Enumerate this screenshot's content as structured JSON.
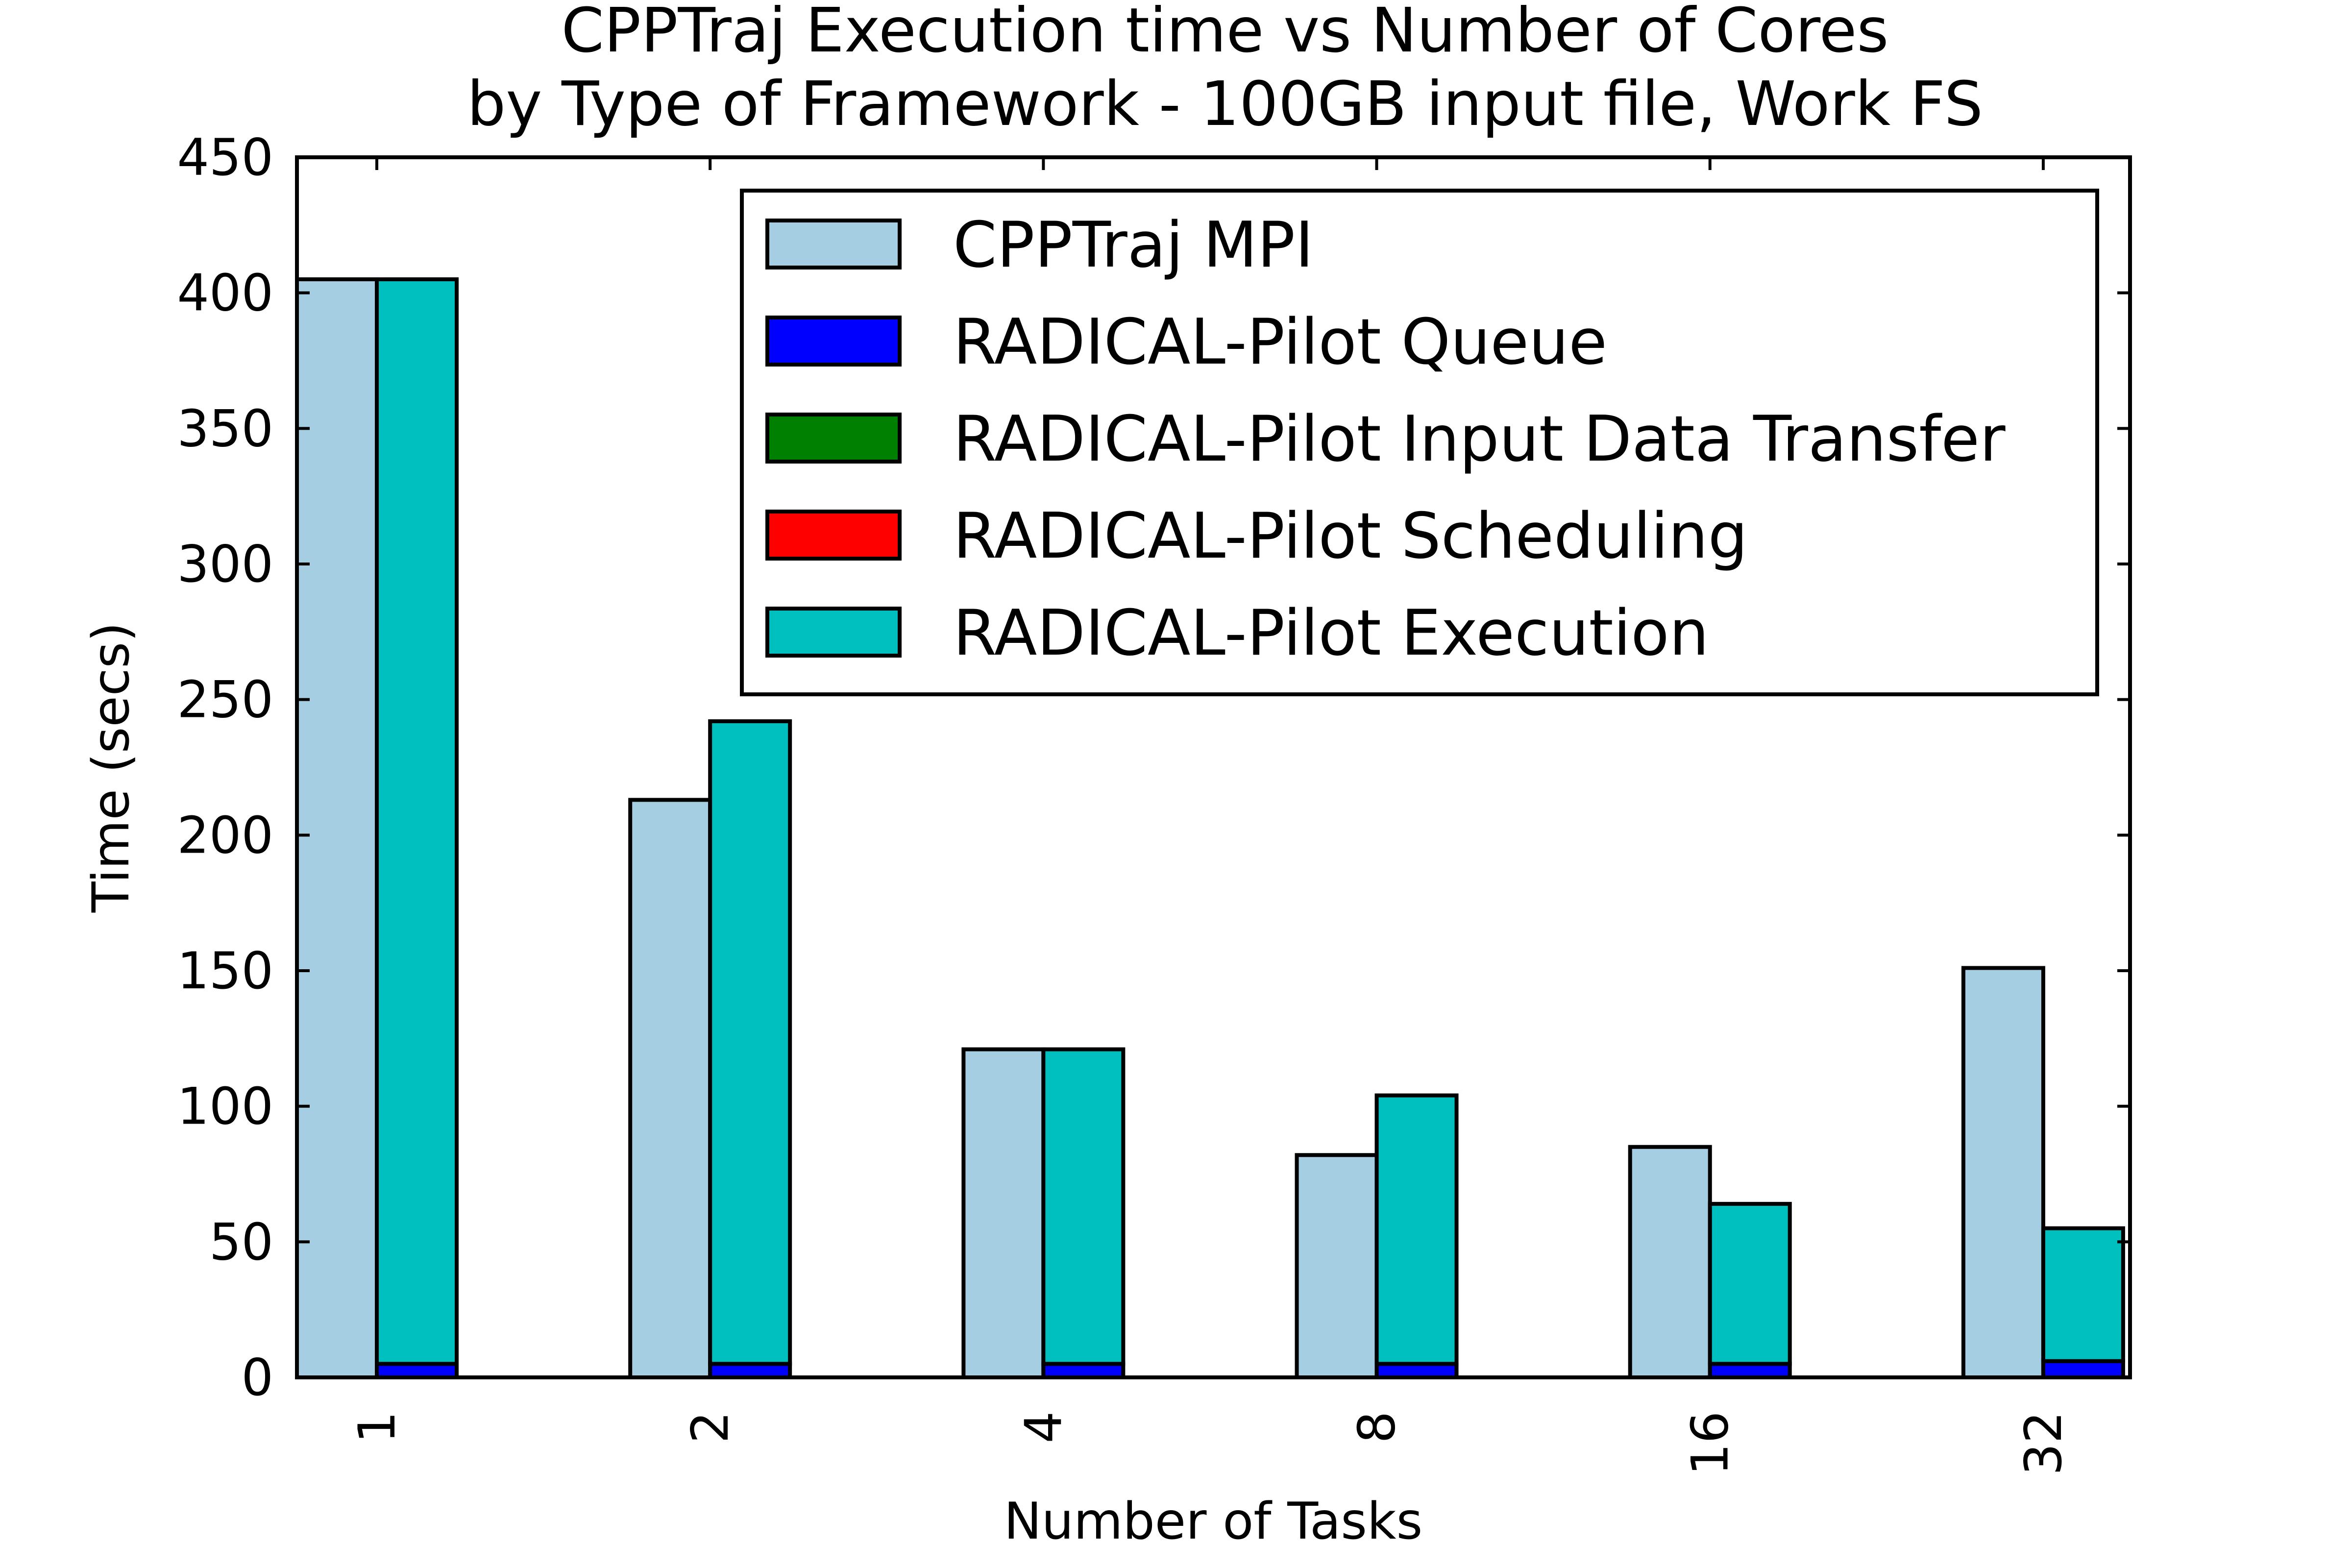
{
  "chart_data": {
    "type": "bar",
    "title_line1": "CPPTraj Execution time vs Number of Cores",
    "title_line2": "by Type of Framework - 100GB input file, Work FS",
    "xlabel": "Number of Tasks",
    "ylabel": "Time (secs)",
    "ylim": [
      0,
      450
    ],
    "yticks": [
      "0",
      "50",
      "100",
      "150",
      "200",
      "250",
      "300",
      "350",
      "400",
      "450"
    ],
    "categories": [
      "1",
      "2",
      "4",
      "8",
      "16",
      "32"
    ],
    "grid": false,
    "legend_position": "upper-right",
    "series": [
      {
        "name": "CPPTraj MPI",
        "color": "#a6cee3",
        "stack": "mpi",
        "values": [
          405,
          213,
          121,
          82,
          85,
          151
        ]
      },
      {
        "name": "RADICAL-Pilot Queue",
        "color": "#0000ff",
        "stack": "rp",
        "values": [
          5,
          5,
          5,
          5,
          5,
          6
        ]
      },
      {
        "name": "RADICAL-Pilot Input Data Transfer",
        "color": "#008000",
        "stack": "rp",
        "values": [
          0,
          0,
          0,
          0,
          0,
          0
        ]
      },
      {
        "name": "RADICAL-Pilot Scheduling",
        "color": "#ff0000",
        "stack": "rp",
        "values": [
          0,
          0,
          0,
          0,
          0,
          0
        ]
      },
      {
        "name": "RADICAL-Pilot Execution",
        "color": "#00bfbf",
        "stack": "rp",
        "values": [
          400,
          237,
          116,
          99,
          59,
          49
        ]
      }
    ]
  }
}
